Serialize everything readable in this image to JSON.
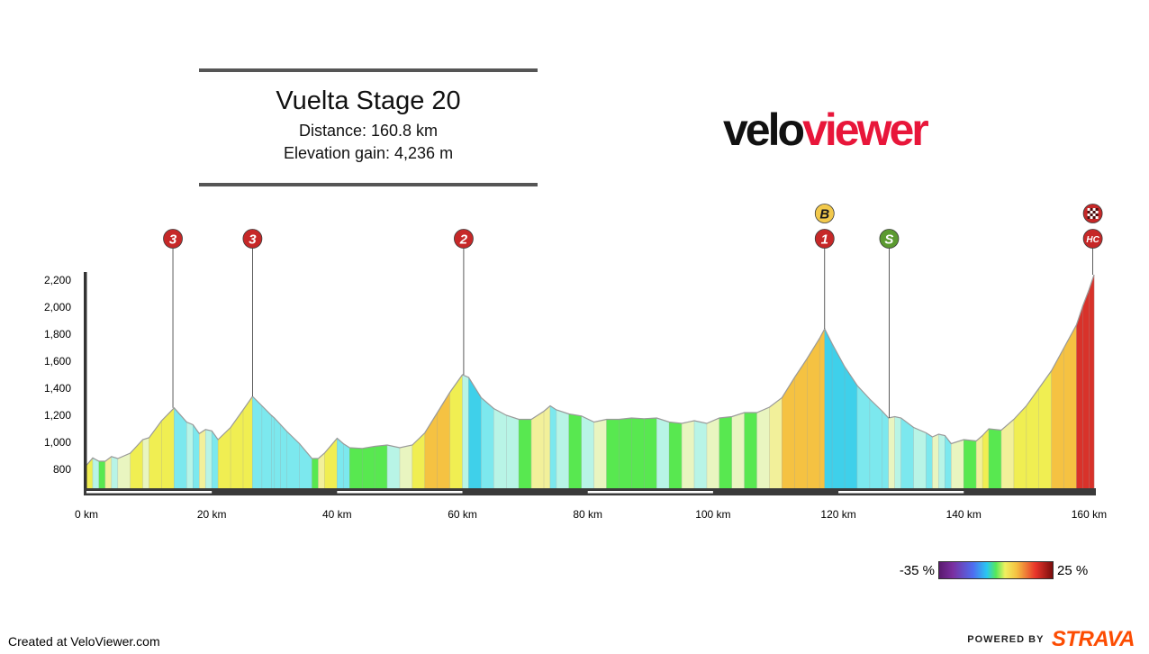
{
  "header": {
    "title": "Vuelta Stage 20",
    "distance": "Distance: 160.8 km",
    "elevation_gain": "Elevation gain: 4,236 m"
  },
  "logo": {
    "part1": "velo",
    "part2": "viewer",
    "color1": "#111111",
    "color2": "#e8163a"
  },
  "chart_data": {
    "type": "area",
    "title": "Vuelta Stage 20",
    "xlabel": "",
    "ylabel": "",
    "x_unit": "km",
    "xlim": [
      0,
      160.8
    ],
    "ylim": [
      660,
      2260
    ],
    "x_ticks": [
      0,
      20,
      40,
      60,
      80,
      100,
      120,
      140,
      160
    ],
    "x_tick_labels": [
      "0 km",
      "20 km",
      "40 km",
      "60 km",
      "80 km",
      "100 km",
      "120 km",
      "140 km",
      "160 km"
    ],
    "y_ticks": [
      800,
      1000,
      1200,
      1400,
      1600,
      1800,
      2000,
      2200
    ],
    "y_tick_labels": [
      "800",
      "1,000",
      "1,200",
      "1,400",
      "1,600",
      "1,800",
      "2,000",
      "2,200"
    ],
    "profile": [
      {
        "km": 0,
        "elev": 830
      },
      {
        "km": 1,
        "elev": 885
      },
      {
        "km": 2,
        "elev": 860
      },
      {
        "km": 3,
        "elev": 860
      },
      {
        "km": 4,
        "elev": 895
      },
      {
        "km": 5,
        "elev": 880
      },
      {
        "km": 7,
        "elev": 920
      },
      {
        "km": 9,
        "elev": 1020
      },
      {
        "km": 10,
        "elev": 1035
      },
      {
        "km": 12,
        "elev": 1160
      },
      {
        "km": 14,
        "elev": 1255
      },
      {
        "km": 16,
        "elev": 1150
      },
      {
        "km": 17,
        "elev": 1130
      },
      {
        "km": 18,
        "elev": 1065
      },
      {
        "km": 19,
        "elev": 1095
      },
      {
        "km": 20,
        "elev": 1085
      },
      {
        "km": 21,
        "elev": 1020
      },
      {
        "km": 23,
        "elev": 1110
      },
      {
        "km": 25,
        "elev": 1240
      },
      {
        "km": 26.5,
        "elev": 1340
      },
      {
        "km": 28,
        "elev": 1270
      },
      {
        "km": 29.5,
        "elev": 1200
      },
      {
        "km": 30,
        "elev": 1180
      },
      {
        "km": 31,
        "elev": 1130
      },
      {
        "km": 32,
        "elev": 1080
      },
      {
        "km": 34,
        "elev": 990
      },
      {
        "km": 36,
        "elev": 880
      },
      {
        "km": 37,
        "elev": 880
      },
      {
        "km": 38,
        "elev": 920
      },
      {
        "km": 40,
        "elev": 1030
      },
      {
        "km": 41,
        "elev": 990
      },
      {
        "km": 42,
        "elev": 960
      },
      {
        "km": 44,
        "elev": 955
      },
      {
        "km": 46,
        "elev": 970
      },
      {
        "km": 48,
        "elev": 980
      },
      {
        "km": 50,
        "elev": 960
      },
      {
        "km": 52,
        "elev": 980
      },
      {
        "km": 54,
        "elev": 1070
      },
      {
        "km": 56,
        "elev": 1220
      },
      {
        "km": 58,
        "elev": 1370
      },
      {
        "km": 60,
        "elev": 1500
      },
      {
        "km": 61,
        "elev": 1480
      },
      {
        "km": 63,
        "elev": 1330
      },
      {
        "km": 65,
        "elev": 1250
      },
      {
        "km": 67,
        "elev": 1200
      },
      {
        "km": 69,
        "elev": 1170
      },
      {
        "km": 71,
        "elev": 1170
      },
      {
        "km": 73,
        "elev": 1230
      },
      {
        "km": 74,
        "elev": 1270
      },
      {
        "km": 75,
        "elev": 1240
      },
      {
        "km": 77,
        "elev": 1210
      },
      {
        "km": 79,
        "elev": 1195
      },
      {
        "km": 81,
        "elev": 1150
      },
      {
        "km": 83,
        "elev": 1170
      },
      {
        "km": 85,
        "elev": 1170
      },
      {
        "km": 87,
        "elev": 1180
      },
      {
        "km": 89,
        "elev": 1175
      },
      {
        "km": 91,
        "elev": 1180
      },
      {
        "km": 93,
        "elev": 1150
      },
      {
        "km": 95,
        "elev": 1140
      },
      {
        "km": 97,
        "elev": 1160
      },
      {
        "km": 99,
        "elev": 1140
      },
      {
        "km": 101,
        "elev": 1180
      },
      {
        "km": 103,
        "elev": 1190
      },
      {
        "km": 105,
        "elev": 1220
      },
      {
        "km": 107,
        "elev": 1220
      },
      {
        "km": 109,
        "elev": 1260
      },
      {
        "km": 111,
        "elev": 1330
      },
      {
        "km": 113,
        "elev": 1480
      },
      {
        "km": 115,
        "elev": 1620
      },
      {
        "km": 117,
        "elev": 1770
      },
      {
        "km": 117.8,
        "elev": 1840
      },
      {
        "km": 119,
        "elev": 1730
      },
      {
        "km": 121,
        "elev": 1560
      },
      {
        "km": 123,
        "elev": 1420
      },
      {
        "km": 125,
        "elev": 1320
      },
      {
        "km": 127,
        "elev": 1230
      },
      {
        "km": 128,
        "elev": 1180
      },
      {
        "km": 129,
        "elev": 1190
      },
      {
        "km": 130,
        "elev": 1180
      },
      {
        "km": 132,
        "elev": 1110
      },
      {
        "km": 134,
        "elev": 1070
      },
      {
        "km": 135,
        "elev": 1040
      },
      {
        "km": 136,
        "elev": 1060
      },
      {
        "km": 137,
        "elev": 1050
      },
      {
        "km": 138,
        "elev": 990
      },
      {
        "km": 140,
        "elev": 1020
      },
      {
        "km": 142,
        "elev": 1010
      },
      {
        "km": 143,
        "elev": 1050
      },
      {
        "km": 144,
        "elev": 1100
      },
      {
        "km": 146,
        "elev": 1090
      },
      {
        "km": 148,
        "elev": 1170
      },
      {
        "km": 150,
        "elev": 1270
      },
      {
        "km": 152,
        "elev": 1400
      },
      {
        "km": 154,
        "elev": 1530
      },
      {
        "km": 156,
        "elev": 1700
      },
      {
        "km": 158,
        "elev": 1870
      },
      {
        "km": 159,
        "elev": 2010
      },
      {
        "km": 160,
        "elev": 2130
      },
      {
        "km": 160.8,
        "elev": 2240
      }
    ],
    "climbs": [
      {
        "km": 13.8,
        "elev": 1255,
        "labels": [
          "3"
        ],
        "colors": [
          "#c62828"
        ]
      },
      {
        "km": 26.5,
        "elev": 1340,
        "labels": [
          "3"
        ],
        "colors": [
          "#c62828"
        ]
      },
      {
        "km": 60.2,
        "elev": 1500,
        "labels": [
          "2"
        ],
        "colors": [
          "#c62828"
        ]
      },
      {
        "km": 117.8,
        "elev": 1840,
        "labels": [
          "1",
          "B"
        ],
        "colors": [
          "#c62828",
          "#f2c94c"
        ]
      },
      {
        "km": 128.1,
        "elev": 1180,
        "labels": [
          "S"
        ],
        "colors": [
          "#5b9a30"
        ]
      },
      {
        "km": 160.6,
        "elev": 2240,
        "labels": [
          "HC",
          "finish-flag"
        ],
        "colors": [
          "#c62828",
          "#c62828"
        ]
      }
    ]
  },
  "legend": {
    "min": "-35 %",
    "max": "25 %"
  },
  "footer": {
    "created": "Created at VeloViewer.com",
    "powered_prefix": "POWERED BY",
    "powered_brand": "STRAVA"
  }
}
